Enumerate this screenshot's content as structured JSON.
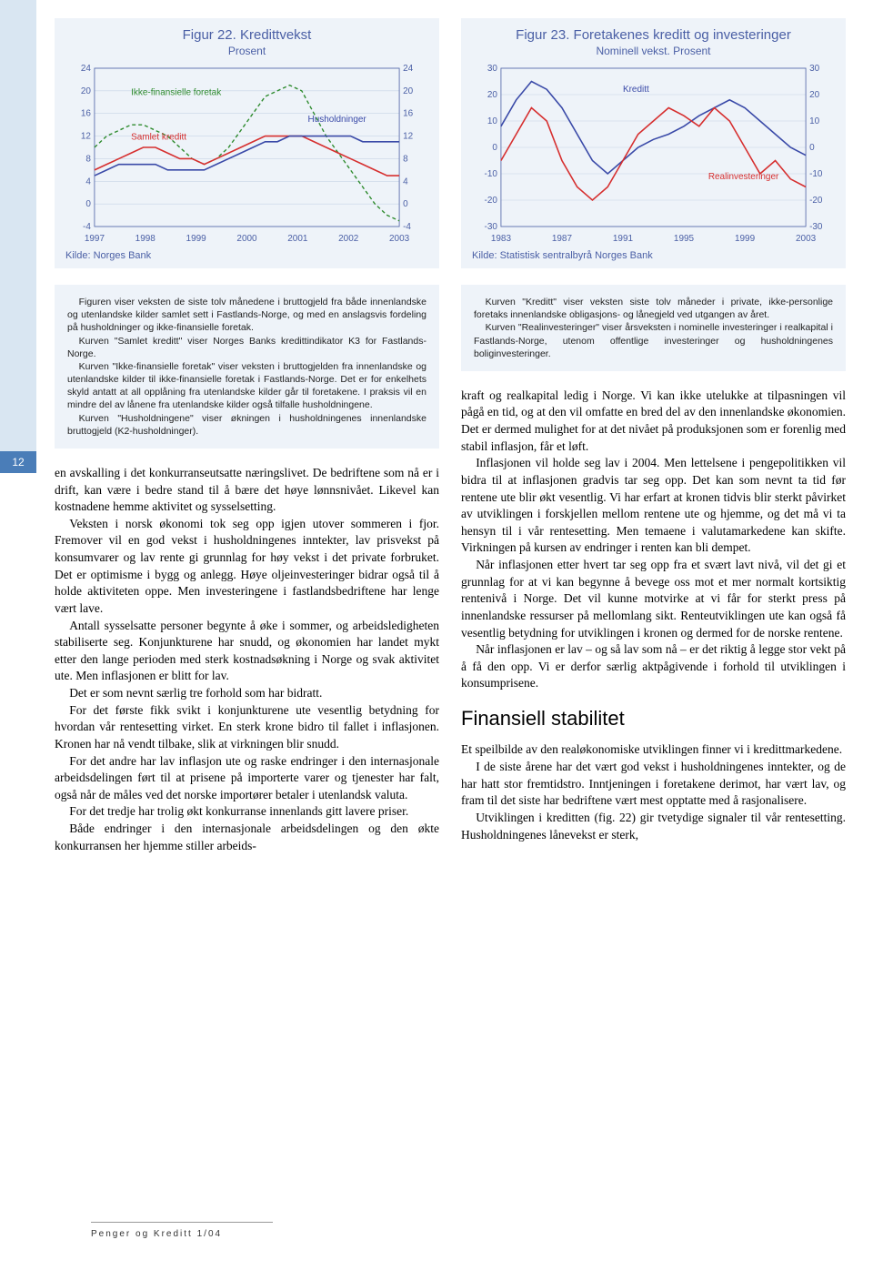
{
  "page_number": "12",
  "footer": "Penger og Kreditt 1/04",
  "chart1": {
    "title": "Figur 22. Kredittvekst",
    "subtitle": "Prosent",
    "source": "Kilde: Norges Bank",
    "ylim": [
      -4,
      24
    ],
    "yticks": [
      -4,
      0,
      4,
      8,
      12,
      16,
      20,
      24
    ],
    "xticks": [
      "1997",
      "1998",
      "1999",
      "2000",
      "2001",
      "2002",
      "2003"
    ],
    "bg": "#eef3f9",
    "plot_bg": "#eef3f9",
    "axis_color": "#4a5fa5",
    "grid_color": "#c8d4e6",
    "series": [
      {
        "name": "Ikke-finansielle foretak",
        "label_pos": [
          0.12,
          0.17
        ],
        "color": "#2e8b2e",
        "dash": "4 3",
        "width": 1.4,
        "x": [
          0,
          0.04,
          0.08,
          0.12,
          0.16,
          0.2,
          0.24,
          0.28,
          0.32,
          0.36,
          0.4,
          0.44,
          0.48,
          0.52,
          0.56,
          0.6,
          0.64,
          0.68,
          0.72,
          0.76,
          0.8,
          0.84,
          0.88,
          0.92,
          0.96,
          1.0
        ],
        "y": [
          10,
          12,
          13,
          14,
          14,
          13,
          12,
          10,
          8,
          7,
          8,
          10,
          13,
          16,
          19,
          20,
          21,
          20,
          16,
          12,
          9,
          6,
          3,
          0,
          -2,
          -3
        ]
      },
      {
        "name": "Samlet kreditt",
        "label_pos": [
          0.12,
          0.45
        ],
        "color": "#d62f2f",
        "dash": "",
        "width": 1.6,
        "x": [
          0,
          0.04,
          0.08,
          0.12,
          0.16,
          0.2,
          0.24,
          0.28,
          0.32,
          0.36,
          0.4,
          0.44,
          0.48,
          0.52,
          0.56,
          0.6,
          0.64,
          0.68,
          0.72,
          0.76,
          0.8,
          0.84,
          0.88,
          0.92,
          0.96,
          1.0
        ],
        "y": [
          6,
          7,
          8,
          9,
          10,
          10,
          9,
          8,
          8,
          7,
          8,
          9,
          10,
          11,
          12,
          12,
          12,
          12,
          11,
          10,
          9,
          8,
          7,
          6,
          5,
          5
        ]
      },
      {
        "name": "Husholdninger",
        "label_pos": [
          0.7,
          0.34
        ],
        "color": "#3a4aa8",
        "dash": "",
        "width": 1.6,
        "x": [
          0,
          0.04,
          0.08,
          0.12,
          0.16,
          0.2,
          0.24,
          0.28,
          0.32,
          0.36,
          0.4,
          0.44,
          0.48,
          0.52,
          0.56,
          0.6,
          0.64,
          0.68,
          0.72,
          0.76,
          0.8,
          0.84,
          0.88,
          0.92,
          0.96,
          1.0
        ],
        "y": [
          5,
          6,
          7,
          7,
          7,
          7,
          6,
          6,
          6,
          6,
          7,
          8,
          9,
          10,
          11,
          11,
          12,
          12,
          12,
          12,
          12,
          12,
          11,
          11,
          11,
          11
        ]
      }
    ]
  },
  "chart2": {
    "title": "Figur 23. Foretakenes kreditt og investeringer",
    "subtitle": "Nominell vekst. Prosent",
    "source": "Kilde: Statistisk sentralbyrå Norges Bank",
    "ylim": [
      -30,
      30
    ],
    "yticks": [
      -30,
      -20,
      -10,
      0,
      10,
      20,
      30
    ],
    "xticks": [
      "1983",
      "1987",
      "1991",
      "1995",
      "1999",
      "2003"
    ],
    "bg": "#eef3f9",
    "axis_color": "#4a5fa5",
    "grid_color": "#c8d4e6",
    "series": [
      {
        "name": "Kreditt",
        "label_pos": [
          0.4,
          0.15
        ],
        "color": "#3a4aa8",
        "dash": "",
        "width": 1.6,
        "x": [
          0,
          0.05,
          0.1,
          0.15,
          0.2,
          0.25,
          0.3,
          0.35,
          0.4,
          0.45,
          0.5,
          0.55,
          0.6,
          0.65,
          0.7,
          0.75,
          0.8,
          0.85,
          0.9,
          0.95,
          1.0
        ],
        "y": [
          8,
          18,
          25,
          22,
          15,
          5,
          -5,
          -10,
          -5,
          0,
          3,
          5,
          8,
          12,
          15,
          18,
          15,
          10,
          5,
          0,
          -3
        ]
      },
      {
        "name": "Realinvesteringer",
        "label_pos": [
          0.68,
          0.7
        ],
        "color": "#d62f2f",
        "dash": "",
        "width": 1.6,
        "x": [
          0,
          0.05,
          0.1,
          0.15,
          0.2,
          0.25,
          0.3,
          0.35,
          0.4,
          0.45,
          0.5,
          0.55,
          0.6,
          0.65,
          0.7,
          0.75,
          0.8,
          0.85,
          0.9,
          0.95,
          1.0
        ],
        "y": [
          -5,
          5,
          15,
          10,
          -5,
          -15,
          -20,
          -15,
          -5,
          5,
          10,
          15,
          12,
          8,
          15,
          10,
          0,
          -10,
          -5,
          -12,
          -15
        ]
      }
    ]
  },
  "caption1": {
    "p1": "Figuren viser veksten de siste tolv månedene i bruttogjeld fra både innenlandske og utenlandske kilder samlet sett i Fastlands-Norge, og med en anslagsvis fordeling på husholdninger og ikke-finansielle foretak.",
    "p2": "Kurven \"Samlet kreditt\" viser Norges Banks kredittindikator K3 for Fastlands-Norge.",
    "p3": "Kurven \"Ikke-finansielle foretak\" viser veksten i bruttogjelden fra innenlandske og utenlandske kilder til ikke-finansielle foretak i Fastlands-Norge. Det er for enkelhets skyld antatt at all opplåning fra utenlandske kilder går til foretakene. I praksis vil en mindre del av lånene fra utenlandske kilder også tilfalle husholdningene.",
    "p4": "Kurven \"Husholdningene\" viser økningen i husholdningenes innenlandske bruttogjeld (K2-husholdninger)."
  },
  "caption2": {
    "p1": "Kurven \"Kreditt\" viser veksten siste tolv måneder i private, ikke-personlige foretaks innenlandske obligasjons- og lånegjeld ved utgangen av året.",
    "p2": "Kurven \"Realinvesteringer\" viser årsveksten i nominelle investeringer i realkapital i Fastlands-Norge, utenom offentlige investeringer og husholdningenes boliginvesteringer."
  },
  "col1": {
    "p1": "en avskalling i det konkurranseutsatte næringslivet. De bedriftene som nå er i drift, kan være i bedre stand til å bære det høye lønnsnivået. Likevel kan kostnadene hemme aktivitet og sysselsetting.",
    "p2": "Veksten i norsk økonomi tok seg opp igjen utover sommeren i fjor. Fremover vil en god vekst i husholdningenes inntekter, lav prisvekst på konsumvarer og lav rente gi grunnlag for høy vekst i det private forbruket. Det er optimisme i bygg og anlegg. Høye oljeinvesteringer bidrar også til å holde aktiviteten oppe. Men investeringene i fastlandsbedriftene har lenge vært lave.",
    "p3": "Antall sysselsatte personer begynte å øke i sommer, og arbeidsledigheten stabiliserte seg. Konjunkturene har snudd, og økonomien har landet mykt etter den lange perioden med sterk kostnadsøkning i Norge og svak aktivitet ute. Men inflasjonen er blitt for lav.",
    "p4": "Det er som nevnt særlig tre forhold som har bidratt.",
    "p5": "For det første fikk svikt i konjunkturene ute vesentlig betydning for hvordan vår rentesetting virket. En sterk krone bidro til fallet i inflasjonen. Kronen har nå vendt tilbake, slik at virkningen blir snudd.",
    "p6": "For det andre har lav inflasjon ute og raske endringer i den internasjonale arbeidsdelingen ført til at prisene på importerte varer og tjenester har falt, også når de måles ved det norske importører betaler i utenlandsk valuta.",
    "p7": "For det tredje har trolig økt konkurranse innenlands gitt lavere priser.",
    "p8": "Både endringer i den internasjonale arbeidsdelingen og den økte konkurransen her hjemme stiller arbeids-"
  },
  "col2": {
    "p1": "kraft og realkapital ledig i Norge. Vi kan ikke utelukke at tilpasningen vil pågå en tid, og at den vil omfatte en bred del av den innenlandske økonomien. Det er dermed mulighet for at det nivået på produksjonen som er forenlig med stabil inflasjon, får et løft.",
    "p2": "Inflasjonen vil holde seg lav i 2004. Men lettelsene i pengepolitikken vil bidra til at inflasjonen gradvis tar seg opp. Det kan som nevnt ta tid før rentene ute blir økt vesentlig. Vi har erfart at kronen tidvis blir sterkt påvirket av utviklingen i forskjellen mellom rentene ute og hjemme, og det må vi ta hensyn til i vår rentesetting. Men temaene i valutamarkedene kan skifte. Virkningen på kursen av endringer i renten kan bli dempet.",
    "p3": "Når inflasjonen etter hvert tar seg opp fra et svært lavt nivå, vil det gi et grunnlag for at vi kan begynne å bevege oss mot et mer normalt kortsiktig rentenivå i Norge. Det vil kunne motvirke at vi får for sterkt press på innenlandske ressurser på mellomlang sikt. Renteutviklingen ute kan også få vesentlig betydning for utviklingen i kronen og dermed for de norske rentene.",
    "p4": "Når inflasjonen er lav – og så lav som nå – er det riktig å legge stor vekt på å få den opp. Vi er derfor særlig aktpågivende i forhold til utviklingen i konsumprisene.",
    "h2": "Finansiell stabilitet",
    "p5": "Et speilbilde av den realøkonomiske utviklingen finner vi i kredittmarkedene.",
    "p6": "I de siste årene har det vært god vekst i husholdningenes inntekter, og de har hatt stor fremtidstro. Inntjeningen i foretakene derimot, har vært lav, og fram til det siste har bedriftene vært mest opptatte med å rasjonalisere.",
    "p7": "Utviklingen i kreditten (fig. 22) gir tvetydige signaler til vår rentesetting. Husholdningenes lånevekst er sterk,"
  }
}
